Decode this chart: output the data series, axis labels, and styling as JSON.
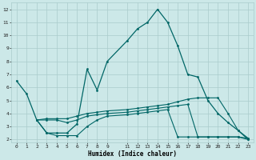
{
  "xlabel": "Humidex (Indice chaleur)",
  "background_color": "#cce8e8",
  "grid_color": "#aacccc",
  "line_color": "#006666",
  "ylim": [
    1.8,
    12.5
  ],
  "xlim": [
    -0.5,
    23.5
  ],
  "yticks": [
    2,
    3,
    4,
    5,
    6,
    7,
    8,
    9,
    10,
    11,
    12
  ],
  "xticks": [
    0,
    1,
    2,
    3,
    4,
    5,
    6,
    7,
    8,
    9,
    11,
    12,
    13,
    14,
    15,
    16,
    17,
    18,
    19,
    20,
    21,
    22,
    23
  ],
  "line1_x": [
    0,
    1,
    2,
    3,
    4,
    5,
    6,
    7,
    8,
    9,
    11,
    12,
    13,
    14,
    15,
    16,
    17,
    18,
    19,
    20,
    21,
    22,
    23
  ],
  "line1_y": [
    6.5,
    5.5,
    3.5,
    2.5,
    2.5,
    2.5,
    3.2,
    7.4,
    5.8,
    8.0,
    9.6,
    10.5,
    11.0,
    12.0,
    11.0,
    9.2,
    7.0,
    6.8,
    5.0,
    4.0,
    3.3,
    2.7,
    2.0
  ],
  "line2_x": [
    2,
    3,
    4,
    5,
    6,
    7,
    8,
    9,
    11,
    12,
    13,
    14,
    15,
    16,
    17,
    18,
    19,
    20,
    21,
    22,
    23
  ],
  "line2_y": [
    3.5,
    3.6,
    3.6,
    3.6,
    3.8,
    4.0,
    4.1,
    4.2,
    4.3,
    4.4,
    4.5,
    4.6,
    4.7,
    4.9,
    5.1,
    5.2,
    5.2,
    5.2,
    4.0,
    2.7,
    2.1
  ],
  "line3_x": [
    2,
    3,
    4,
    5,
    6,
    7,
    8,
    9,
    11,
    12,
    13,
    14,
    15,
    16,
    17,
    18,
    19,
    20,
    21,
    22,
    23
  ],
  "line3_y": [
    3.5,
    3.5,
    3.5,
    3.3,
    3.5,
    3.8,
    3.9,
    4.0,
    4.1,
    4.2,
    4.3,
    4.4,
    4.5,
    4.6,
    4.7,
    2.2,
    2.2,
    2.2,
    2.2,
    2.2,
    2.1
  ],
  "line4_x": [
    2,
    3,
    4,
    5,
    6,
    7,
    8,
    9,
    11,
    12,
    13,
    14,
    15,
    16,
    17,
    18,
    19,
    20,
    21,
    22,
    23
  ],
  "line4_y": [
    3.5,
    2.5,
    2.3,
    2.3,
    2.3,
    3.0,
    3.5,
    3.8,
    3.9,
    4.0,
    4.1,
    4.2,
    4.3,
    2.2,
    2.2,
    2.2,
    2.2,
    2.2,
    2.2,
    2.2,
    2.0
  ]
}
